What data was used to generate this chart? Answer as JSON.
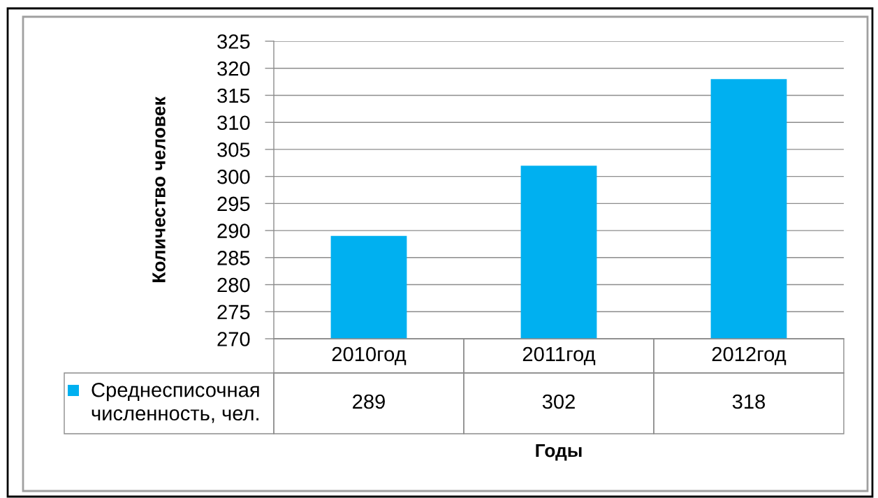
{
  "chart_data": {
    "type": "bar",
    "xlabel": "Годы",
    "ylabel": "Количество человек",
    "categories": [
      "2010год",
      "2011год",
      "2012год"
    ],
    "series": [
      {
        "name": "Среднесписочная численность, чел.",
        "color": "#00b0f0",
        "values": [
          289,
          302,
          318
        ]
      }
    ],
    "ylim": [
      270,
      325
    ],
    "yticks": [
      270,
      275,
      280,
      285,
      290,
      295,
      300,
      305,
      310,
      315,
      320,
      325
    ],
    "grid": "y",
    "legend": "bottom left",
    "data_labels": true
  }
}
